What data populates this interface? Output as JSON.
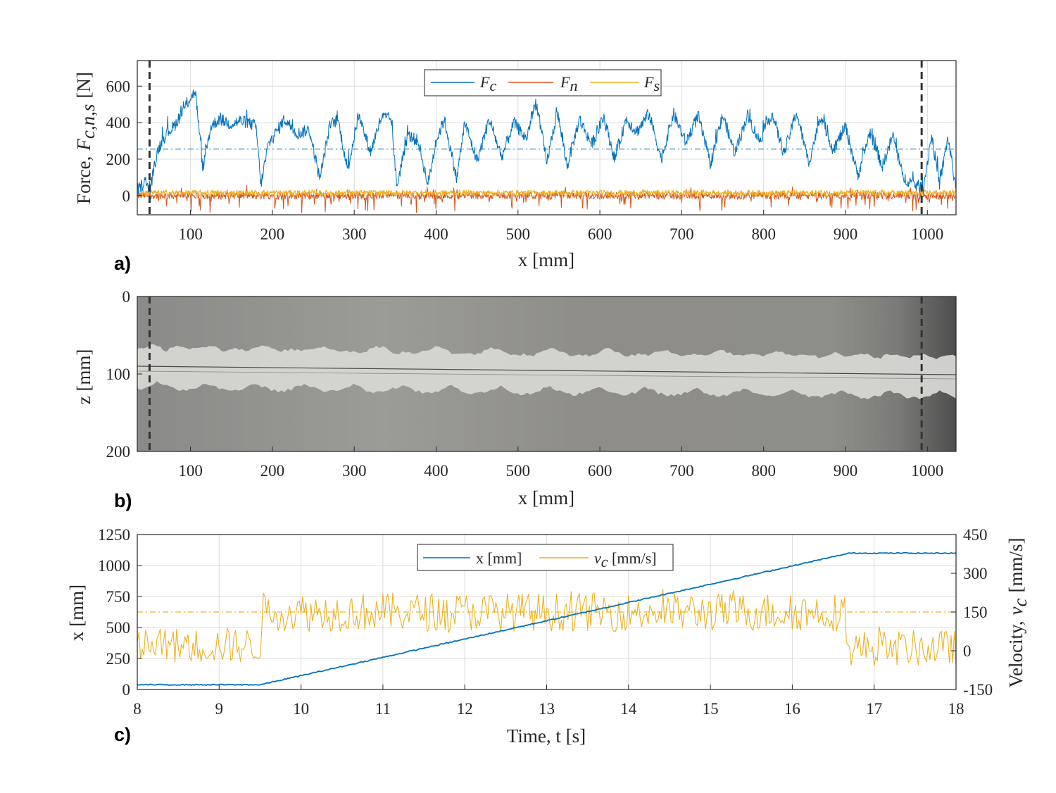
{
  "colors": {
    "blue": "#0072BD",
    "orange": "#D95319",
    "yellow": "#EDB120",
    "dash": "#333333",
    "grid": "#dcdcdc"
  },
  "chart_data": [
    {
      "panel": "a)",
      "type": "line",
      "xlabel": "x [mm]",
      "ylabel": "Force, F_{c,n,s} [N]",
      "ylabel_prefix": "Force,",
      "ylabel_sym": "F",
      "ylabel_sub": "c,n,s",
      "ylabel_unit": "[N]",
      "xlim": [
        35,
        1035
      ],
      "ylim": [
        -105,
        740
      ],
      "xticks": [
        100,
        200,
        300,
        400,
        500,
        600,
        700,
        800,
        900,
        1000
      ],
      "yticks": [
        0,
        200,
        400,
        600
      ],
      "grid": true,
      "legend": {
        "position": "top-center",
        "entries": [
          {
            "sym": "F",
            "sub": "c",
            "color": "blue"
          },
          {
            "sym": "F",
            "sub": "n",
            "color": "orange"
          },
          {
            "sym": "F",
            "sub": "s",
            "color": "yellow"
          }
        ]
      },
      "series": [
        {
          "name": "F_c",
          "color": "blue",
          "mean": 255,
          "x": [
            35,
            45,
            50,
            60,
            70,
            80,
            90,
            100,
            106,
            115,
            125,
            135,
            150,
            160,
            170,
            180,
            186,
            195,
            205,
            215,
            230,
            245,
            258,
            270,
            280,
            292,
            305,
            320,
            333,
            345,
            352,
            365,
            378,
            390,
            400,
            410,
            425,
            435,
            450,
            465,
            480,
            495,
            510,
            522,
            535,
            548,
            560,
            575,
            590,
            605,
            618,
            632,
            645,
            660,
            675,
            690,
            705,
            720,
            735,
            750,
            765,
            780,
            795,
            810,
            825,
            840,
            855,
            870,
            885,
            900,
            915,
            930,
            945,
            958,
            970,
            985,
            995,
            1005,
            1015,
            1025,
            1035
          ],
          "y": [
            30,
            80,
            20,
            250,
            340,
            380,
            460,
            540,
            570,
            150,
            380,
            420,
            390,
            410,
            400,
            380,
            60,
            280,
            350,
            420,
            340,
            360,
            90,
            380,
            420,
            140,
            440,
            240,
            430,
            420,
            50,
            330,
            300,
            60,
            300,
            420,
            90,
            400,
            190,
            420,
            210,
            400,
            310,
            520,
            180,
            460,
            160,
            420,
            280,
            430,
            200,
            420,
            350,
            450,
            200,
            450,
            290,
            440,
            170,
            440,
            230,
            440,
            300,
            450,
            230,
            460,
            180,
            440,
            250,
            380,
            110,
            350,
            160,
            330,
            100,
            60,
            40,
            330,
            60,
            320,
            40
          ]
        },
        {
          "name": "F_n",
          "color": "orange",
          "mean": 0
        },
        {
          "name": "F_s",
          "color": "yellow",
          "mean": 15
        }
      ],
      "markers": {
        "vertical_dashed_x": [
          50,
          993
        ]
      }
    },
    {
      "panel": "b)",
      "type": "image-strip",
      "xlabel": "x [mm]",
      "ylabel": "z [mm]",
      "xlim": [
        35,
        1035
      ],
      "ylim": [
        200,
        0
      ],
      "xticks": [
        100,
        200,
        300,
        400,
        500,
        600,
        700,
        800,
        900,
        1000
      ],
      "yticks": [
        0,
        100,
        200
      ],
      "markers": {
        "vertical_dashed_x": [
          50,
          993
        ]
      }
    },
    {
      "panel": "c)",
      "type": "line",
      "xlabel": "Time, t [s]",
      "ylabel_left": "x [mm]",
      "ylabel_right": "Velocity, v_c [mm/s]",
      "ylabel_right_prefix": "Velocity,",
      "ylabel_right_sym": "v",
      "ylabel_right_sub": "c",
      "ylabel_right_unit": "[mm/s]",
      "xlim": [
        8,
        18
      ],
      "ylim_left": [
        0,
        1250
      ],
      "ylim_right": [
        -150,
        450
      ],
      "xticks": [
        8,
        9,
        10,
        11,
        12,
        13,
        14,
        15,
        16,
        17,
        18
      ],
      "yticks_left": [
        0,
        250,
        500,
        750,
        1000,
        1250
      ],
      "yticks_right": [
        -150,
        0,
        150,
        300,
        450
      ],
      "grid": true,
      "legend": {
        "position": "top-center",
        "entries": [
          {
            "text": "x [mm]",
            "color": "blue"
          },
          {
            "sym": "v",
            "sub": "c",
            "text": " [mm/s]",
            "color": "yellow"
          }
        ]
      },
      "series": [
        {
          "name": "x [mm]",
          "color": "blue",
          "axis": "left",
          "t": [
            8,
            9.5,
            16.7,
            18
          ],
          "values": [
            38,
            38,
            1100,
            1100
          ]
        },
        {
          "name": "v_c [mm/s]",
          "color": "yellow",
          "axis": "right",
          "mean": 150,
          "segments": [
            {
              "t": [
                8,
                9.5
              ],
              "level": 20
            },
            {
              "t": [
                9.5,
                16.65
              ],
              "level": 150
            },
            {
              "t": [
                16.65,
                18
              ],
              "level": 10
            }
          ]
        }
      ]
    }
  ]
}
